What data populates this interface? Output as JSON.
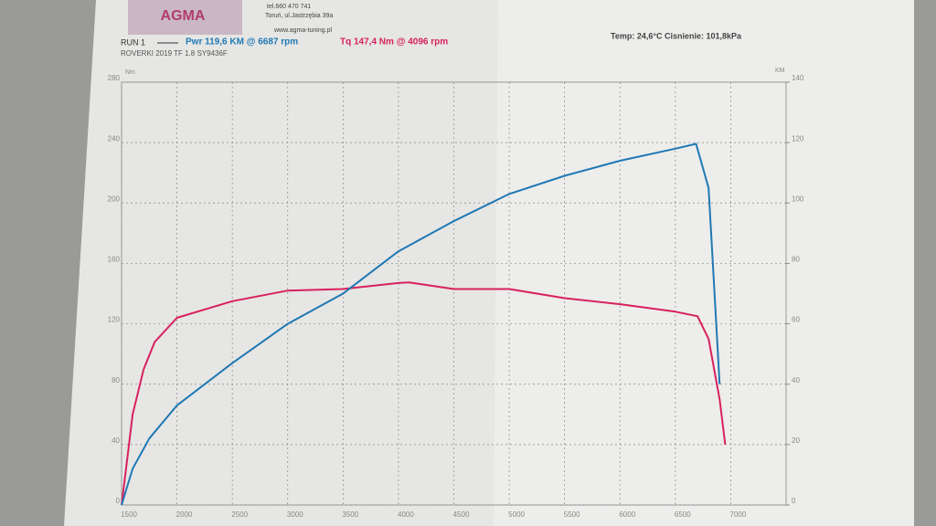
{
  "chart_data": {
    "type": "line",
    "logo": "AGMA",
    "phone": "tel.660 470 741",
    "address": "Toruń, ul.Jastrzębia 39a",
    "website": "www.agma-tuning.pl",
    "run": "RUN 1",
    "power_label": "Pwr 119,6 KM @ 6687 rpm",
    "torque_label": "Tq 147,4 Nm @ 4096 rpm",
    "conditions": "Temp: 24,6°C  Cisnienie: 101,8kPa",
    "vehicle": "ROVERKI 2019 TF 1.8 SY9436F",
    "ylabel": "Nm",
    "y2label": "KM",
    "xlim": [
      1500,
      7500
    ],
    "xticks": [
      1500,
      2000,
      2500,
      3000,
      3500,
      4000,
      4500,
      5000,
      5500,
      6000,
      6500,
      7000
    ],
    "ylim": [
      0,
      280
    ],
    "yticks": [
      0,
      40,
      80,
      120,
      160,
      200,
      240,
      280
    ],
    "y2lim": [
      0,
      140
    ],
    "y2ticks": [
      0,
      20,
      40,
      60,
      80,
      100,
      120,
      140
    ],
    "grid": true,
    "series": [
      {
        "name": "Tq",
        "color": "#d8215e",
        "x": [
          1500,
          1550,
          1600,
          1700,
          1800,
          2000,
          2500,
          3000,
          3500,
          4000,
          4096,
          4500,
          5000,
          5500,
          6000,
          6500,
          6700,
          6800,
          6900,
          6950
        ],
        "values": [
          0,
          30,
          60,
          90,
          108,
          124,
          135,
          142,
          143,
          147,
          147.4,
          143,
          143,
          137,
          133,
          128,
          125,
          110,
          70,
          40
        ]
      },
      {
        "name": "Pwr",
        "color": "#1f78b4",
        "axis": "y2",
        "x": [
          1500,
          1600,
          1750,
          2000,
          2500,
          3000,
          3500,
          4000,
          4500,
          5000,
          5500,
          6000,
          6500,
          6687,
          6800,
          6900
        ],
        "values": [
          0,
          12,
          22,
          33,
          47,
          60,
          70,
          84,
          94,
          103,
          109,
          114,
          118,
          119.6,
          105,
          40
        ]
      }
    ]
  }
}
